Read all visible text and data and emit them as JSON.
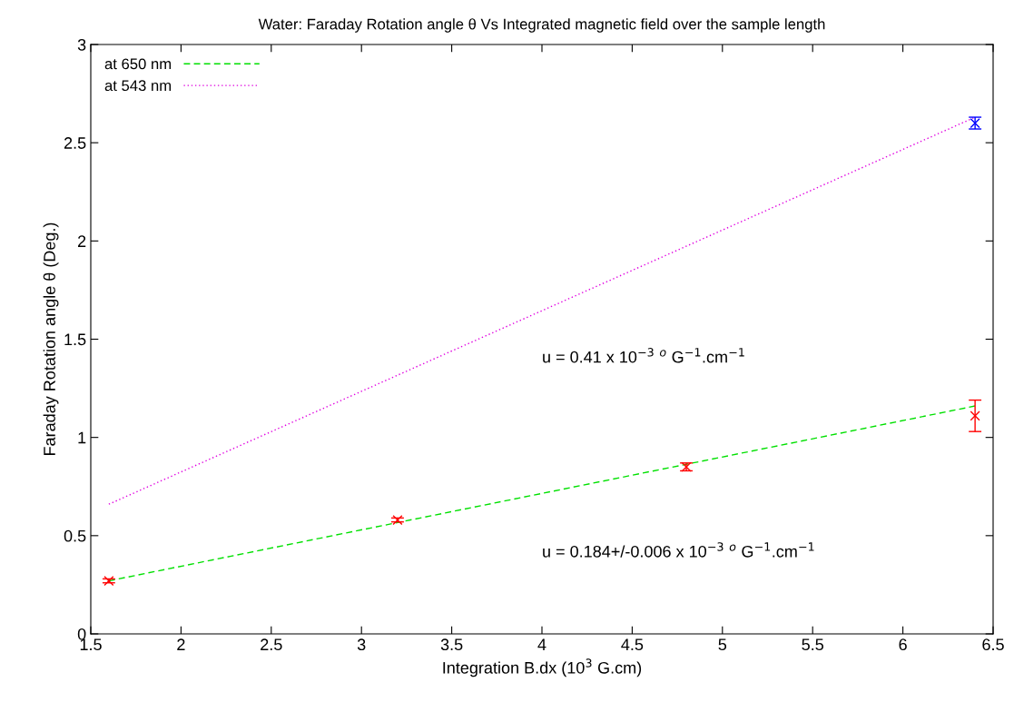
{
  "chart_data": {
    "type": "line",
    "title": "Water: Faraday Rotation angle θ Vs Integrated magnetic field over the sample length",
    "xlabel": "Integration B.dx (10$^{3}$ G.cm)",
    "ylabel": "Faraday Rotation angle θ (Deg.)",
    "xlim": [
      1.5,
      6.5
    ],
    "xticks": [
      1.5,
      2,
      2.5,
      3,
      3.5,
      4,
      4.5,
      5,
      5.5,
      6,
      6.5
    ],
    "ylim": [
      0,
      3
    ],
    "yticks": [
      0,
      0.5,
      1,
      1.5,
      2,
      2.5,
      3
    ],
    "grid": false,
    "legend": "top left",
    "series": [
      {
        "name": "at 650 nm",
        "color": "#00e000",
        "line_style": "dashed",
        "marker": "none",
        "x": [
          1.6,
          6.4
        ],
        "values": [
          0.27,
          1.16
        ]
      },
      {
        "name": "at 543 nm",
        "color": "#e000e0",
        "line_style": "dotted",
        "marker": "none",
        "x": [
          1.6,
          6.4
        ],
        "values": [
          0.66,
          2.63
        ]
      },
      {
        "type": "scatter",
        "color": "#ff0000",
        "marker": "cross",
        "x": [
          1.6,
          3.2,
          4.8,
          6.4
        ],
        "values": [
          0.27,
          0.58,
          0.85,
          1.11
        ],
        "errors": [
          0.01,
          0.01,
          0.02,
          0.08
        ]
      },
      {
        "type": "scatter",
        "color": "#0000ff",
        "marker": "cross",
        "x": [
          6.4
        ],
        "values": [
          2.6
        ],
        "errors": [
          0.03
        ]
      }
    ],
    "annotations": [
      "u = 0.41 x 10$^{−3}$ $^{o}$ G$^{−1}$.cm$^{−1}$",
      "u = 0.184+/-0.006 x 10$^{−3}$ $^{o}$ G$^{−1}$.cm$^{−1}$"
    ]
  }
}
